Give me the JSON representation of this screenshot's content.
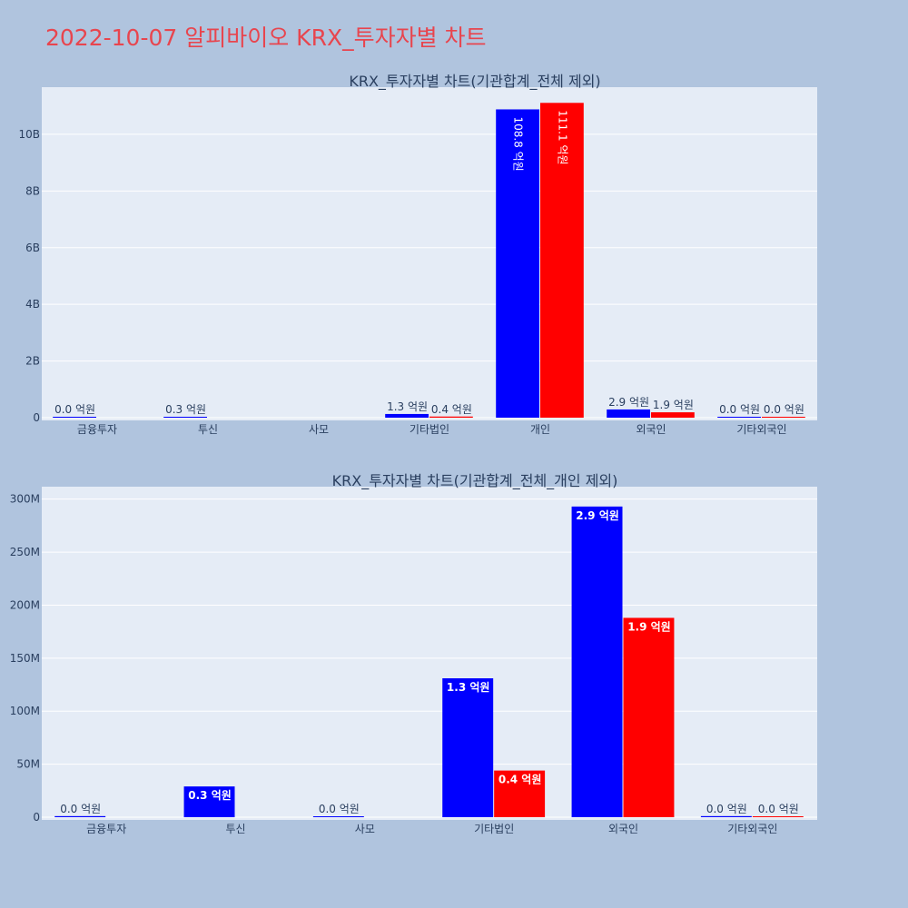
{
  "page_title": "2022-10-07 알피바이오 KRX_투자자별 차트",
  "colors": {
    "buy": "#0000ff",
    "sell": "#ff0000",
    "title": "#e8454e",
    "plot_bg": "#e5ecf6",
    "page_bg": "#b0c4de"
  },
  "chart_data": [
    {
      "type": "bar",
      "title": "KRX_투자자별 차트(기관합계_전체 제외)",
      "categories": [
        "금융투자",
        "투신",
        "사모",
        "기타법인",
        "개인",
        "외국인",
        "기타외국인"
      ],
      "y_ticks": [
        "0",
        "2B",
        "4B",
        "6B",
        "8B",
        "10B"
      ],
      "y_tick_values": [
        0,
        2000000000,
        4000000000,
        6000000000,
        8000000000,
        10000000000
      ],
      "ylim": [
        0,
        11600000000
      ],
      "grid": true,
      "series": [
        {
          "color": "#0000ff",
          "values": [
            0,
            30000000,
            null,
            130000000,
            10880000000,
            290000000,
            0
          ],
          "labels": [
            "0.0 억원",
            "0.3 억원",
            "",
            "1.3 억원",
            "108.8 억원",
            "2.9 억원",
            "0.0 억원"
          ]
        },
        {
          "color": "#ff0000",
          "values": [
            null,
            null,
            null,
            40000000,
            11110000000,
            190000000,
            0
          ],
          "labels": [
            "",
            "",
            "",
            "0.4 억원",
            "111.1 억원",
            "1.9 억원",
            "0.0 억원"
          ]
        }
      ]
    },
    {
      "type": "bar",
      "title": "KRX_투자자별 차트(기관합계_전체_개인 제외)",
      "categories": [
        "금융투자",
        "투신",
        "사모",
        "기타법인",
        "외국인",
        "기타외국인"
      ],
      "y_ticks": [
        "0",
        "50M",
        "100M",
        "150M",
        "200M",
        "250M",
        "300M"
      ],
      "y_tick_values": [
        0,
        50000000,
        100000000,
        150000000,
        200000000,
        250000000,
        300000000
      ],
      "ylim": [
        0,
        310000000
      ],
      "grid": true,
      "series": [
        {
          "color": "#0000ff",
          "values": [
            1000000,
            29000000,
            0,
            131000000,
            293000000,
            1000000
          ],
          "labels": [
            "0.0 억원",
            "0.3 억원",
            "0.0 억원",
            "1.3 억원",
            "2.9 억원",
            "0.0 억원"
          ]
        },
        {
          "color": "#ff0000",
          "values": [
            null,
            null,
            null,
            44000000,
            188000000,
            0
          ],
          "labels": [
            "",
            "",
            "",
            "0.4 억원",
            "1.9 억원",
            "0.0 억원"
          ]
        }
      ]
    }
  ]
}
